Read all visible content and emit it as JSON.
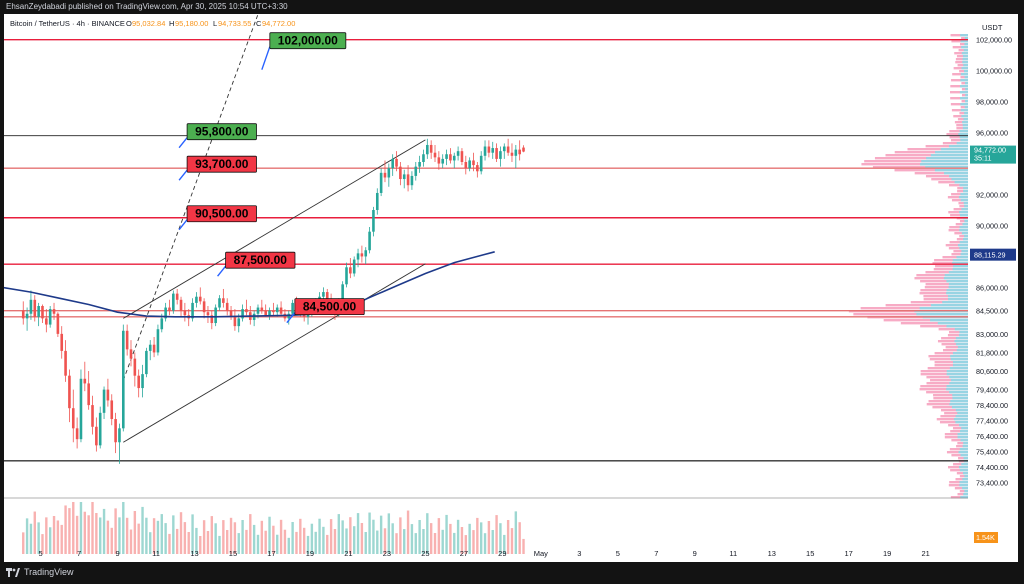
{
  "header": {
    "publisher_line": "EhsanZeydabadi published on TradingView.com, Apr 30, 2025 10:54 UTC+3:30"
  },
  "legend": {
    "symbol": "Bitcoin / TetherUS · 4h · BINANCE",
    "open_label": "O",
    "open": "95,032.84",
    "high_label": "H",
    "high": "95,180.00",
    "low_label": "L",
    "low": "94,733.55",
    "close_label": "C",
    "close": "94,772.00"
  },
  "footer": {
    "brand": "TradingView"
  },
  "colors": {
    "up": "#26a69a",
    "down": "#ef5350",
    "accent": "#2962ff"
  },
  "chart_data": {
    "type": "candlestick",
    "symbol": "Bitcoin / TetherUS",
    "interval": "4h",
    "exchange": "BINANCE",
    "currency_label": "USDT",
    "x_tick_labels": [
      "5",
      "7",
      "9",
      "11",
      "13",
      "15",
      "17",
      "19",
      "21",
      "23",
      "25",
      "27",
      "29",
      "May",
      "3",
      "5",
      "7",
      "9",
      "11",
      "13",
      "15",
      "17",
      "19",
      "21"
    ],
    "y_tick_labels": [
      "102,000.00",
      "100,000.00",
      "98,000.00",
      "96,000.00",
      "92,000.00",
      "90,000.00",
      "86,000.00",
      "84,500.00",
      "83,000.00",
      "81,800.00",
      "80,600.00",
      "79,400.00",
      "78,400.00",
      "77,400.00",
      "76,400.00",
      "75,400.00",
      "74,400.00",
      "73,400.00"
    ],
    "y_range": [
      72400,
      103400
    ],
    "last_price": {
      "value": 94772,
      "label": "94,772.00",
      "countdown": "35:11"
    },
    "ma_last": {
      "value": 88115.29,
      "label": "88,115.29"
    },
    "volume_badge": "1.54K",
    "levels": [
      {
        "price": 102000,
        "label": "102,000.00",
        "color": "#e91e3c",
        "box": "#4caf50",
        "anchor_day": 16.5
      },
      {
        "price": 95800,
        "label": "95,800.00",
        "color": "#222222",
        "box": "#4caf50",
        "anchor_day": 12.2
      },
      {
        "price": 93700,
        "label": "93,700.00",
        "color": "#e57373",
        "box": "#f23645",
        "anchor_day": 12.2
      },
      {
        "price": 90500,
        "label": "90,500.00",
        "color": "#e91e3c",
        "box": "#f23645",
        "anchor_day": 12.2
      },
      {
        "price": 87500,
        "label": "87,500.00",
        "color": "#e91e3c",
        "box": "#f23645",
        "anchor_day": 14.2
      },
      {
        "price": 84500,
        "label": "84,500.00",
        "color": "#e57373",
        "box": "#f23645",
        "anchor_day": 17.8
      },
      {
        "price": 84100,
        "label": "",
        "color": "#e57373",
        "box": "",
        "anchor_day": 0
      },
      {
        "price": 74800,
        "label": "",
        "color": "#333333",
        "box": "",
        "anchor_day": 0
      }
    ],
    "channel": {
      "start_day": 9.3,
      "lower": [
        [
          9.3,
          76000
        ],
        [
          20.6,
          84300
        ]
      ],
      "upper": [
        [
          9.3,
          84000
        ],
        [
          20.6,
          92300
        ]
      ],
      "mid_dashed": [
        [
          9.3,
          80000
        ],
        [
          17.0,
          106000
        ]
      ]
    },
    "ma_line": [
      [
        3.0,
        86000
      ],
      [
        4.5,
        85700
      ],
      [
        6.0,
        85300
      ],
      [
        7.5,
        84900
      ],
      [
        9.0,
        84400
      ],
      [
        10.5,
        84150
      ],
      [
        12.0,
        84100
      ],
      [
        14.0,
        84100
      ],
      [
        16.0,
        84150
      ],
      [
        18.0,
        84200
      ],
      [
        19.5,
        84300
      ],
      [
        20.5,
        84400
      ],
      [
        22.0,
        85300
      ],
      [
        23.5,
        86100
      ],
      [
        25.0,
        86900
      ],
      [
        26.5,
        87600
      ],
      [
        28.0,
        88100
      ],
      [
        28.6,
        88300
      ]
    ],
    "candles": [
      [
        4.1,
        84500,
        85100,
        83600,
        84000
      ],
      [
        4.3,
        84000,
        84700,
        83200,
        84300
      ],
      [
        4.5,
        84300,
        85800,
        83900,
        85200
      ],
      [
        4.7,
        85200,
        85500,
        83800,
        84100
      ],
      [
        4.9,
        84100,
        85000,
        83500,
        84800
      ],
      [
        5.1,
        84800,
        84900,
        83700,
        84000
      ],
      [
        5.3,
        84000,
        84600,
        83100,
        83600
      ],
      [
        5.5,
        83600,
        84800,
        83400,
        84600
      ],
      [
        5.7,
        84600,
        85000,
        83900,
        84300
      ],
      [
        5.9,
        84300,
        84400,
        82800,
        83000
      ],
      [
        6.1,
        83000,
        83500,
        81400,
        81900
      ],
      [
        6.3,
        81900,
        82600,
        79900,
        80300
      ],
      [
        6.5,
        80300,
        80700,
        77300,
        78200
      ],
      [
        6.7,
        78200,
        79400,
        76000,
        76900
      ],
      [
        6.9,
        76900,
        77600,
        75600,
        76200
      ],
      [
        7.1,
        76200,
        80700,
        76000,
        80100
      ],
      [
        7.3,
        80100,
        81200,
        79300,
        79800
      ],
      [
        7.5,
        79800,
        80600,
        78100,
        78400
      ],
      [
        7.7,
        78400,
        79000,
        76500,
        77000
      ],
      [
        7.9,
        77000,
        77600,
        75400,
        75800
      ],
      [
        8.1,
        75800,
        78300,
        75600,
        77900
      ],
      [
        8.3,
        77900,
        79600,
        77500,
        79400
      ],
      [
        8.5,
        79400,
        80100,
        78300,
        78700
      ],
      [
        8.7,
        78700,
        79100,
        77100,
        77500
      ],
      [
        8.9,
        77500,
        77900,
        75300,
        76000
      ],
      [
        9.1,
        76000,
        77200,
        74600,
        76900
      ],
      [
        9.3,
        76900,
        83600,
        76700,
        83200
      ],
      [
        9.5,
        83200,
        83600,
        81600,
        82000
      ],
      [
        9.7,
        82000,
        82600,
        80900,
        81400
      ],
      [
        9.9,
        81400,
        81800,
        79600,
        80300
      ],
      [
        10.1,
        80300,
        80700,
        78900,
        79500
      ],
      [
        10.3,
        79500,
        81000,
        78900,
        80400
      ],
      [
        10.5,
        80400,
        82100,
        80200,
        81900
      ],
      [
        10.7,
        81900,
        82600,
        81300,
        82300
      ],
      [
        10.9,
        82300,
        82800,
        81500,
        81800
      ],
      [
        11.1,
        81800,
        83600,
        81600,
        83300
      ],
      [
        11.3,
        83300,
        84300,
        83100,
        84000
      ],
      [
        11.5,
        84000,
        85000,
        83800,
        84700
      ],
      [
        11.7,
        84700,
        85200,
        84200,
        84500
      ],
      [
        11.9,
        84500,
        85800,
        84300,
        85600
      ],
      [
        12.1,
        85600,
        85900,
        84900,
        85200
      ],
      [
        12.3,
        85200,
        85400,
        84100,
        84500
      ],
      [
        12.5,
        84500,
        85000,
        83800,
        84200
      ],
      [
        12.7,
        84200,
        84600,
        83500,
        84000
      ],
      [
        12.9,
        84000,
        85300,
        83800,
        85000
      ],
      [
        13.1,
        85000,
        85700,
        84700,
        85400
      ],
      [
        13.3,
        85400,
        86000,
        84900,
        85100
      ],
      [
        13.5,
        85100,
        85300,
        84000,
        84400
      ],
      [
        13.7,
        84400,
        84800,
        83700,
        84200
      ],
      [
        13.9,
        84200,
        84500,
        83300,
        83700
      ],
      [
        14.1,
        83700,
        84900,
        83500,
        84700
      ],
      [
        14.3,
        84700,
        85500,
        84500,
        85300
      ],
      [
        14.5,
        85300,
        85900,
        84700,
        85000
      ],
      [
        14.7,
        85000,
        85300,
        84200,
        84500
      ],
      [
        14.9,
        84500,
        84800,
        83900,
        84100
      ],
      [
        15.1,
        84100,
        84600,
        83200,
        83500
      ],
      [
        15.3,
        83500,
        84300,
        83100,
        84000
      ],
      [
        15.5,
        84000,
        84900,
        83800,
        84600
      ],
      [
        15.7,
        84600,
        85200,
        84200,
        84400
      ],
      [
        15.9,
        84400,
        84800,
        83600,
        83900
      ],
      [
        16.1,
        83900,
        84500,
        83500,
        84300
      ],
      [
        16.3,
        84300,
        84900,
        84000,
        84700
      ],
      [
        16.5,
        84700,
        85200,
        84300,
        84500
      ],
      [
        16.7,
        84500,
        84900,
        84100,
        84200
      ],
      [
        16.9,
        84200,
        84700,
        83900,
        84500
      ],
      [
        17.1,
        84500,
        85000,
        84200,
        84400
      ],
      [
        17.3,
        84400,
        84900,
        84100,
        84700
      ],
      [
        17.5,
        84700,
        85100,
        84200,
        84300
      ],
      [
        17.7,
        84300,
        84600,
        83800,
        84000
      ],
      [
        17.9,
        84000,
        84500,
        83600,
        84300
      ],
      [
        18.1,
        84300,
        85200,
        84100,
        85000
      ],
      [
        18.3,
        85000,
        85400,
        84400,
        84700
      ],
      [
        18.5,
        84700,
        85000,
        84100,
        84300
      ],
      [
        18.7,
        84300,
        84700,
        83800,
        84100
      ],
      [
        18.9,
        84100,
        84600,
        83600,
        84400
      ],
      [
        19.1,
        84400,
        84900,
        84100,
        84600
      ],
      [
        19.3,
        84600,
        85300,
        84400,
        85100
      ],
      [
        19.5,
        85100,
        85700,
        84900,
        85400
      ],
      [
        19.7,
        85400,
        86000,
        85100,
        85700
      ],
      [
        19.9,
        85700,
        85900,
        84900,
        85200
      ],
      [
        20.1,
        85200,
        85600,
        84400,
        84700
      ],
      [
        20.3,
        84700,
        85000,
        83900,
        84300
      ],
      [
        20.5,
        84300,
        85300,
        84100,
        85000
      ],
      [
        20.7,
        85000,
        86400,
        84900,
        86200
      ],
      [
        20.9,
        86200,
        87600,
        86000,
        87300
      ],
      [
        21.1,
        87300,
        87900,
        86600,
        86900
      ],
      [
        21.3,
        86900,
        88000,
        86700,
        87800
      ],
      [
        21.5,
        87800,
        88500,
        87300,
        88200
      ],
      [
        21.7,
        88200,
        88700,
        87600,
        88000
      ],
      [
        21.9,
        88000,
        88600,
        87500,
        88400
      ],
      [
        22.1,
        88400,
        89900,
        88200,
        89600
      ],
      [
        22.3,
        89600,
        91200,
        89300,
        91000
      ],
      [
        22.5,
        91000,
        92400,
        90700,
        92100
      ],
      [
        22.7,
        92100,
        93700,
        91900,
        93400
      ],
      [
        22.9,
        93400,
        94200,
        92800,
        93100
      ],
      [
        23.1,
        93100,
        94000,
        92500,
        93700
      ],
      [
        23.3,
        93700,
        94600,
        93200,
        94300
      ],
      [
        23.5,
        94300,
        94800,
        93500,
        93800
      ],
      [
        23.7,
        93800,
        94100,
        92600,
        93000
      ],
      [
        23.9,
        93000,
        93600,
        92400,
        93300
      ],
      [
        24.1,
        93300,
        93900,
        92200,
        92600
      ],
      [
        24.3,
        92600,
        93500,
        92300,
        93200
      ],
      [
        24.5,
        93200,
        94100,
        92900,
        93800
      ],
      [
        24.7,
        93800,
        94500,
        93400,
        94100
      ],
      [
        24.9,
        94100,
        94900,
        93800,
        94600
      ],
      [
        25.1,
        94600,
        95600,
        94300,
        95200
      ],
      [
        25.3,
        95200,
        95500,
        94300,
        94700
      ],
      [
        25.5,
        94700,
        95200,
        94100,
        94400
      ],
      [
        25.7,
        94400,
        94800,
        93600,
        94000
      ],
      [
        25.9,
        94000,
        94600,
        93700,
        94300
      ],
      [
        26.1,
        94300,
        94900,
        93900,
        94600
      ],
      [
        26.3,
        94600,
        95000,
        94000,
        94200
      ],
      [
        26.5,
        94200,
        94700,
        93700,
        94500
      ],
      [
        26.7,
        94500,
        95100,
        94200,
        94800
      ],
      [
        26.9,
        94800,
        95000,
        93900,
        94100
      ],
      [
        27.1,
        94100,
        94500,
        93300,
        93700
      ],
      [
        27.3,
        93700,
        94400,
        93500,
        94200
      ],
      [
        27.5,
        94200,
        94700,
        93500,
        93900
      ],
      [
        27.7,
        93900,
        94100,
        93100,
        93500
      ],
      [
        27.9,
        93500,
        94800,
        93300,
        94500
      ],
      [
        28.1,
        94500,
        95500,
        94200,
        95100
      ],
      [
        28.3,
        95100,
        95500,
        94400,
        94700
      ],
      [
        28.5,
        94700,
        95400,
        94300,
        95000
      ],
      [
        28.7,
        95000,
        95300,
        94100,
        94300
      ],
      [
        28.9,
        94300,
        95100,
        93800,
        94800
      ],
      [
        29.1,
        94800,
        95300,
        94300,
        95100
      ],
      [
        29.3,
        95100,
        95600,
        94500,
        94700
      ],
      [
        29.5,
        94700,
        95300,
        94100,
        94500
      ],
      [
        29.7,
        94500,
        95200,
        93700,
        94900
      ],
      [
        29.9,
        94900,
        95500,
        94200,
        94600
      ],
      [
        30.1,
        95032,
        95180,
        94733,
        94772
      ]
    ]
  }
}
